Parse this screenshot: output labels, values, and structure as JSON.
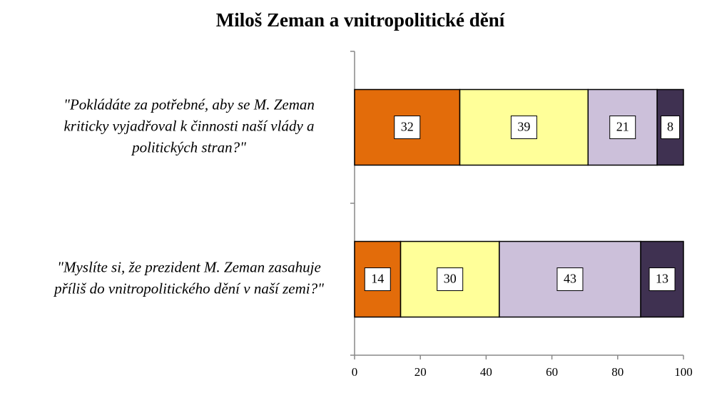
{
  "chart_data": {
    "type": "stacked-bar-horizontal",
    "title": "Miloš Zeman a vnitropolitické dění",
    "categories": [
      [
        "\"Pokládáte za potřebné, aby se M. Zeman",
        "kriticky vyjadřoval k činnosti naší vlády a",
        "politických stran?\""
      ],
      [
        "\"Myslíte si, že prezident M. Zeman zasahuje",
        "příliš do vnitropolitického dění v naší zemi?\""
      ]
    ],
    "series": [
      {
        "color": "#e36c0a",
        "values": [
          32,
          14
        ]
      },
      {
        "color": "#ffff99",
        "values": [
          39,
          30
        ]
      },
      {
        "color": "#ccc0da",
        "values": [
          21,
          43
        ]
      },
      {
        "color": "#3f3151",
        "values": [
          8,
          13
        ]
      }
    ],
    "xlim": [
      0,
      100
    ],
    "xticks": [
      0,
      20,
      40,
      60,
      80,
      100
    ],
    "grid": false
  }
}
